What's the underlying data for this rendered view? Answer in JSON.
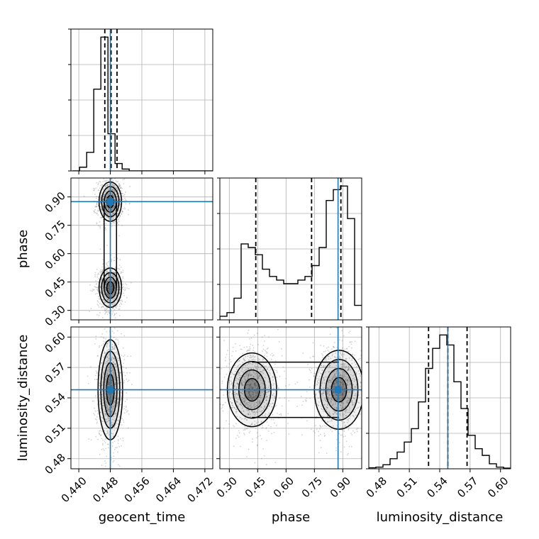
{
  "chart_data": {
    "type": "corner",
    "colors": {
      "truth": "#1f77b4",
      "line": "#000000",
      "grid": "#b0b0b0",
      "points": "#7f7f7f"
    },
    "parameters": [
      {
        "name": "geocent_time",
        "ticks": [
          "0.440",
          "0.448",
          "0.456",
          "0.464",
          "0.472"
        ],
        "tick_values": [
          0.44,
          0.448,
          0.456,
          0.464,
          0.472
        ],
        "range": [
          0.438,
          0.474
        ],
        "truth": 0.448,
        "quantiles": [
          0.4466,
          0.4482,
          0.4497
        ]
      },
      {
        "name": "phase",
        "ticks": [
          "0.30",
          "0.45",
          "0.60",
          "0.75",
          "0.90"
        ],
        "tick_values": [
          0.3,
          0.45,
          0.6,
          0.75,
          0.9
        ],
        "range": [
          0.25,
          1.0
        ],
        "truth": 0.875,
        "quantiles": [
          0.44,
          0.735,
          0.89
        ]
      },
      {
        "name": "luminosity_distance",
        "ticks": [
          "0.48",
          "0.51",
          "0.54",
          "0.57",
          "0.60"
        ],
        "tick_values": [
          0.48,
          0.51,
          0.54,
          0.57,
          0.6
        ],
        "range": [
          0.47,
          0.61
        ],
        "truth": 0.548,
        "quantiles": [
          0.529,
          0.548,
          0.567
        ]
      }
    ],
    "histograms": [
      {
        "parameter": "geocent_time",
        "bin_edges": [
          0.4384,
          0.4402,
          0.442,
          0.4438,
          0.4456,
          0.4474,
          0.4492,
          0.451,
          0.4528,
          0.4546,
          0.4564,
          0.4582,
          0.46,
          0.4618,
          0.4636,
          0.4654,
          0.4672,
          0.469,
          0.4708,
          0.4726,
          0.4744
        ],
        "counts": [
          0,
          1,
          5,
          22,
          36,
          10,
          2,
          0.5,
          0,
          0,
          0,
          0,
          0,
          0,
          0,
          0,
          0,
          0,
          0,
          0
        ]
      },
      {
        "parameter": "phase",
        "bin_edges": [
          0.25,
          0.2875,
          0.325,
          0.3625,
          0.4,
          0.4375,
          0.475,
          0.5125,
          0.55,
          0.5875,
          0.625,
          0.6625,
          0.7,
          0.7375,
          0.775,
          0.8125,
          0.85,
          0.8875,
          0.925,
          0.9625,
          1.0
        ],
        "counts": [
          1,
          2,
          6,
          21,
          20,
          18,
          14,
          12,
          11,
          10,
          10,
          11,
          12,
          15,
          20,
          33,
          36,
          37,
          28,
          4
        ]
      },
      {
        "parameter": "luminosity_distance",
        "bin_edges": [
          0.47,
          0.477,
          0.484,
          0.491,
          0.498,
          0.505,
          0.512,
          0.519,
          0.526,
          0.533,
          0.54,
          0.547,
          0.554,
          0.561,
          0.568,
          0.575,
          0.582,
          0.589,
          0.596,
          0.603,
          0.61
        ],
        "counts": [
          0.3,
          0.5,
          1.2,
          3,
          5,
          8,
          12,
          20,
          30,
          36,
          40,
          37,
          26,
          18,
          10,
          6,
          4,
          1.5,
          0.5,
          0.2
        ]
      }
    ],
    "pairs": [
      {
        "x": "geocent_time",
        "y": "phase",
        "modes": [
          {
            "x": 0.448,
            "y": 0.875,
            "sx": 0.0011,
            "sy": 0.04
          },
          {
            "x": 0.448,
            "y": 0.42,
            "sx": 0.0011,
            "sy": 0.04
          }
        ]
      },
      {
        "x": "geocent_time",
        "y": "luminosity_distance",
        "modes": [
          {
            "x": 0.448,
            "y": 0.548,
            "sx": 0.0012,
            "sy": 0.019
          }
        ]
      },
      {
        "x": "phase",
        "y": "luminosity_distance",
        "modes": [
          {
            "x": 0.42,
            "y": 0.548,
            "sx": 0.05,
            "sy": 0.014
          },
          {
            "x": 0.88,
            "y": 0.548,
            "sx": 0.05,
            "sy": 0.015
          }
        ]
      }
    ],
    "grid": true
  }
}
